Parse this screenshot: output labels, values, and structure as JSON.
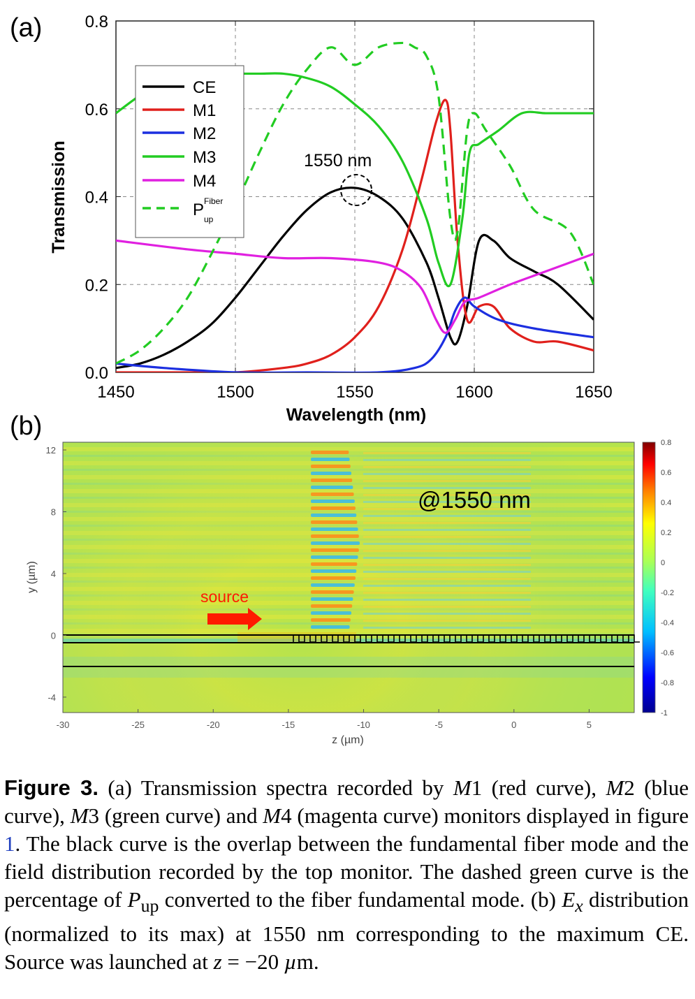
{
  "panel_a": {
    "label": "(a)",
    "ylabel": "Transmission",
    "xlabel": "Wavelength (nm)",
    "annotation": "1550 nm",
    "legend": [
      "CE",
      "M1",
      "M2",
      "M3",
      "M4",
      "P",
      "Fiber",
      "up"
    ]
  },
  "panel_b": {
    "label": "(b)",
    "ylabel": "y (µm)",
    "xlabel": "z (µm)",
    "annotation": "@1550 nm",
    "source_label": "source",
    "y_ticks": [
      "12",
      "8",
      "4",
      "0",
      "-4"
    ],
    "x_ticks": [
      "-30",
      "-25",
      "-20",
      "-15",
      "-10",
      "-5",
      "0",
      "5"
    ],
    "colorbar_ticks": [
      "0.8",
      "0.6",
      "0.4",
      "0.2",
      "0",
      "-0.2",
      "-0.4",
      "-0.6",
      "-0.8",
      "-1"
    ]
  },
  "caption": {
    "label": "Figure 3.",
    "t1": " (a) Transmission spectra recorded by ",
    "m1": "M",
    "t2": "1 (red curve), ",
    "m2": "M",
    "t3": "2 (blue curve), ",
    "m3": "M",
    "t4": "3 (green curve) and ",
    "m4": "M",
    "t5": "4 (magenta curve) monitors displayed in figure ",
    "ref": "1",
    "t6": ". The black curve is the overlap between the fundamental fiber mode and the field distribution recorded by the top monitor. The dashed green curve is the percentage of ",
    "p": "P",
    "psub": "up",
    "t7": " converted to the fiber fundamental mode. (b) ",
    "e": "E",
    "esub": "x",
    "t8": " distribution (normalized to its max) at 1550 nm corresponding to the maximum CE. Source was launched at ",
    "z": "z",
    "t9": " = −20 ",
    "mu": "µ",
    "t10": "m."
  },
  "colors": {
    "CE": "#000000",
    "M1": "#e0201c",
    "M2": "#1c2fe0",
    "M3": "#22cc22",
    "M4": "#e020e0",
    "Pup": "#22cc22"
  },
  "chart_data": [
    {
      "type": "line",
      "xlabel": "Wavelength (nm)",
      "ylabel": "Transmission",
      "xlim": [
        1450,
        1650
      ],
      "ylim": [
        0,
        0.8
      ],
      "xticks": [
        1450,
        1500,
        1550,
        1600,
        1650
      ],
      "yticks": [
        0.0,
        0.2,
        0.4,
        0.6,
        0.8
      ],
      "grid": true,
      "legend_position": "top-left",
      "series": [
        {
          "name": "CE",
          "style": "solid",
          "x": [
            1450,
            1460,
            1470,
            1480,
            1490,
            1500,
            1510,
            1520,
            1530,
            1540,
            1550,
            1560,
            1570,
            1580,
            1585,
            1590,
            1593,
            1597,
            1602,
            1608,
            1615,
            1625,
            1635,
            1650
          ],
          "y": [
            0.01,
            0.02,
            0.04,
            0.07,
            0.11,
            0.17,
            0.24,
            0.31,
            0.37,
            0.41,
            0.42,
            0.4,
            0.35,
            0.25,
            0.17,
            0.08,
            0.07,
            0.15,
            0.3,
            0.3,
            0.26,
            0.23,
            0.2,
            0.12
          ]
        },
        {
          "name": "M1",
          "style": "solid",
          "x": [
            1450,
            1480,
            1500,
            1520,
            1530,
            1540,
            1550,
            1560,
            1570,
            1578,
            1584,
            1588,
            1590,
            1593,
            1597,
            1602,
            1608,
            1615,
            1625,
            1635,
            1650
          ],
          "y": [
            0.0,
            0.0,
            0.0,
            0.01,
            0.02,
            0.04,
            0.08,
            0.15,
            0.28,
            0.44,
            0.57,
            0.62,
            0.55,
            0.3,
            0.12,
            0.15,
            0.15,
            0.1,
            0.07,
            0.07,
            0.05
          ]
        },
        {
          "name": "M2",
          "style": "solid",
          "x": [
            1450,
            1470,
            1500,
            1530,
            1560,
            1575,
            1582,
            1588,
            1592,
            1596,
            1600,
            1610,
            1625,
            1650
          ],
          "y": [
            0.02,
            0.01,
            0.0,
            0.0,
            0.0,
            0.01,
            0.03,
            0.08,
            0.14,
            0.17,
            0.15,
            0.12,
            0.1,
            0.08
          ]
        },
        {
          "name": "M3",
          "style": "solid",
          "x": [
            1450,
            1460,
            1470,
            1480,
            1490,
            1500,
            1510,
            1520,
            1530,
            1540,
            1550,
            1560,
            1570,
            1580,
            1585,
            1590,
            1595,
            1598,
            1602,
            1610,
            1620,
            1630,
            1640,
            1650
          ],
          "y": [
            0.59,
            0.63,
            0.66,
            0.68,
            0.68,
            0.68,
            0.68,
            0.68,
            0.67,
            0.65,
            0.61,
            0.56,
            0.48,
            0.35,
            0.25,
            0.2,
            0.35,
            0.5,
            0.52,
            0.55,
            0.59,
            0.59,
            0.59,
            0.59
          ]
        },
        {
          "name": "M4",
          "style": "solid",
          "x": [
            1450,
            1480,
            1500,
            1520,
            1540,
            1560,
            1570,
            1578,
            1584,
            1588,
            1592,
            1596,
            1602,
            1615,
            1630,
            1650
          ],
          "y": [
            0.3,
            0.28,
            0.27,
            0.26,
            0.26,
            0.25,
            0.23,
            0.19,
            0.12,
            0.09,
            0.12,
            0.16,
            0.17,
            0.2,
            0.23,
            0.27
          ]
        },
        {
          "name": "P up Fiber",
          "style": "dashed",
          "x": [
            1450,
            1460,
            1470,
            1480,
            1490,
            1500,
            1510,
            1520,
            1530,
            1540,
            1550,
            1560,
            1570,
            1575,
            1580,
            1585,
            1590,
            1593,
            1597,
            1600,
            1605,
            1615,
            1625,
            1640,
            1650
          ],
          "y": [
            0.02,
            0.05,
            0.1,
            0.17,
            0.27,
            0.38,
            0.5,
            0.61,
            0.69,
            0.74,
            0.7,
            0.74,
            0.75,
            0.74,
            0.72,
            0.63,
            0.35,
            0.32,
            0.55,
            0.59,
            0.55,
            0.47,
            0.37,
            0.32,
            0.2
          ]
        }
      ]
    },
    {
      "type": "heatmap",
      "xlabel": "z (µm)",
      "ylabel": "y (µm)",
      "xlim": [
        -30,
        8
      ],
      "ylim": [
        -5,
        12.5
      ],
      "colorbar": {
        "min": -1,
        "max": 0.8
      },
      "annotation": "@1550 nm",
      "source_position_z": -20
    }
  ]
}
